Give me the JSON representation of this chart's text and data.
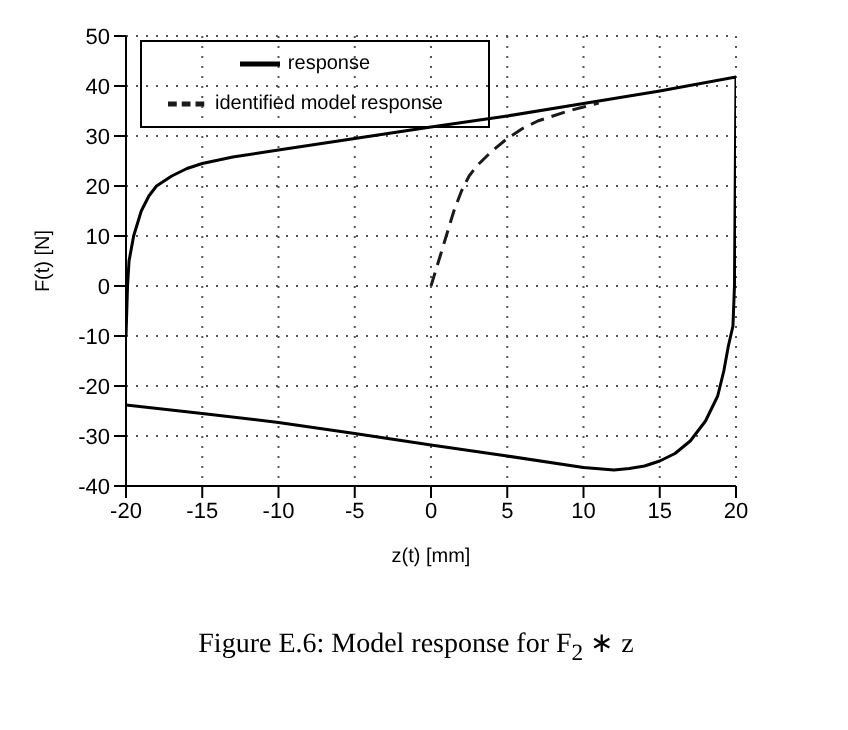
{
  "chart_data": {
    "type": "line",
    "xlabel": "z(t) [mm]",
    "ylabel": "F(t) [N]",
    "xlim": [
      -20,
      20
    ],
    "ylim": [
      -40,
      50
    ],
    "xticks": [
      -20,
      -15,
      -10,
      -5,
      0,
      5,
      10,
      15,
      20
    ],
    "yticks": [
      -40,
      -30,
      -20,
      -10,
      0,
      10,
      20,
      30,
      40,
      50
    ],
    "grid": true,
    "legend": "top left",
    "marker": "none",
    "annotations": [
      "Figure E.6: Model response for F$_{2}$ ∗ z"
    ],
    "series": [
      {
        "name": "response",
        "color": "#000000",
        "line_style": "solid",
        "x": [
          -20,
          -19.9,
          -19.8,
          -19.5,
          -19,
          -18.5,
          -18,
          -17,
          -16,
          -15,
          -13,
          -10,
          -5,
          0,
          5,
          10,
          15,
          20,
          19.9,
          19.8,
          19.5,
          19.2,
          18.8,
          18,
          17,
          16,
          15,
          14,
          13,
          12,
          10,
          5,
          0,
          -5,
          -10,
          -15,
          -20
        ],
        "values": [
          -10,
          0,
          5,
          10,
          15,
          18,
          20,
          22,
          23.5,
          24.5,
          25.8,
          27.2,
          29.5,
          31.8,
          34,
          36.5,
          39,
          41.8,
          0,
          -8,
          -12,
          -17,
          -22,
          -27,
          -31,
          -33.5,
          -35,
          -36,
          -36.5,
          -36.8,
          -36.3,
          -34,
          -31.8,
          -29.5,
          -27.3,
          -25.5,
          -23.8
        ]
      },
      {
        "name": "identified model response",
        "color": "#1a1a1a",
        "line_style": "dashed",
        "x": [
          0,
          0.5,
          1,
          1.5,
          2,
          2.5,
          3,
          4,
          5,
          6,
          7,
          8,
          9,
          10,
          11
        ],
        "values": [
          0,
          5,
          10,
          15,
          19,
          22,
          24,
          27,
          29.5,
          31.5,
          33,
          34,
          35,
          35.8,
          36.6
        ]
      }
    ]
  }
}
